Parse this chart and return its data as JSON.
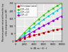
{
  "xlabel": "h (W m⁻² K⁻¹)",
  "ylabel": "Maximum power extracted from the top\nof the component cover (W)",
  "xlim": [
    0,
    10000
  ],
  "ylim": [
    0,
    250
  ],
  "xticks": [
    0,
    2000,
    4000,
    6000,
    8000,
    10000
  ],
  "yticks": [
    0,
    50,
    100,
    150,
    200,
    250
  ],
  "xtick_labels": [
    "0",
    "2000",
    "4000",
    "6000",
    "8000",
    "10000"
  ],
  "ytick_labels": [
    "0",
    "50",
    "100",
    "150",
    "200",
    "250"
  ],
  "line_colors": [
    "#cc0000",
    "#33cc00",
    "#00cccc",
    "#9900cc"
  ],
  "background_color": "#e8e8e8",
  "fig_color": "#c8c8c8",
  "grid_color": "#ffffff",
  "x_pts": [
    0,
    1000,
    2000,
    3000,
    4000,
    5000,
    6000,
    7000,
    8000,
    9000,
    10000
  ],
  "y_off": [
    0,
    11,
    21,
    31,
    40,
    49,
    57,
    65,
    72,
    79,
    85
  ],
  "y_cop05": [
    0,
    25,
    55,
    88,
    118,
    148,
    175,
    198,
    218,
    235,
    248
  ],
  "y_cop033": [
    0,
    19,
    42,
    68,
    95,
    121,
    146,
    168,
    188,
    206,
    222
  ],
  "y_cop0": [
    0,
    14,
    30,
    48,
    67,
    86,
    104,
    121,
    137,
    152,
    166
  ]
}
